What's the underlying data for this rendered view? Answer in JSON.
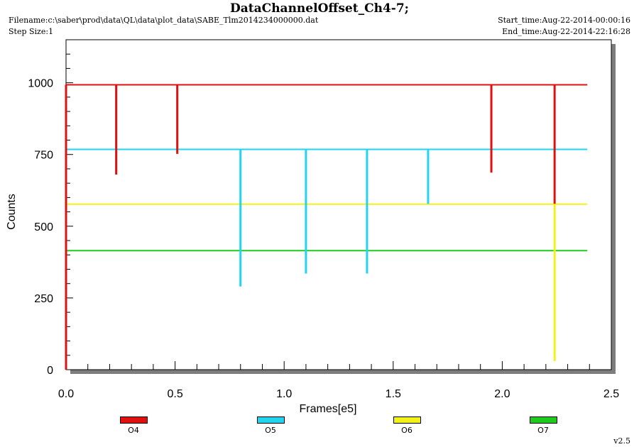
{
  "header": {
    "title": "DataChannelOffset_Ch4-7;",
    "filename": "Filename:c:\\saber\\prod\\data\\QL\\data\\plot_data\\SABE_Tlm2014234000000.dat",
    "step_size": "Step Size:1",
    "start_time": "Start_time:Aug-22-2014-00:00:16",
    "end_time": "End_time:Aug-22-2014-22:16:28"
  },
  "footer": {
    "version": "v2.5"
  },
  "chart_data": {
    "type": "line",
    "title": "DataChannelOffset_Ch4-7;",
    "xlabel": "Frames[e5]",
    "ylabel": "Counts",
    "xlim": [
      0.0,
      2.5
    ],
    "ylim": [
      0,
      1150
    ],
    "x_ticks": [
      0.0,
      0.5,
      1.0,
      1.5,
      2.0,
      2.5
    ],
    "x_tick_labels": [
      "0.0",
      "0.5",
      "1.0",
      "1.5",
      "2.0",
      "2.5"
    ],
    "y_ticks": [
      0,
      250,
      500,
      750,
      1000
    ],
    "y_tick_labels": [
      "0",
      "250",
      "500",
      "750",
      "1000"
    ],
    "grid": false,
    "legend_position": "bottom",
    "series": [
      {
        "name": "O4",
        "color": "#e01010",
        "base": 993,
        "x_range": [
          0.0,
          2.39
        ],
        "spikes": [
          {
            "x": 0.23,
            "y": 680
          },
          {
            "x": 0.51,
            "y": 752
          },
          {
            "x": 1.95,
            "y": 687
          },
          {
            "x": 2.24,
            "y": 578
          }
        ]
      },
      {
        "name": "O5",
        "color": "#22d4ee",
        "base": 768,
        "x_range": [
          0.0,
          2.39
        ],
        "spikes": [
          {
            "x": 0.8,
            "y": 290
          },
          {
            "x": 1.1,
            "y": 335
          },
          {
            "x": 1.38,
            "y": 335
          },
          {
            "x": 1.66,
            "y": 578
          }
        ]
      },
      {
        "name": "O6",
        "color": "#f2f21a",
        "base": 577,
        "x_range": [
          0.0,
          2.39
        ],
        "spikes": [
          {
            "x": 2.24,
            "y": 30
          }
        ]
      },
      {
        "name": "O7",
        "color": "#1ecb1e",
        "base": 415,
        "x_range": [
          0.0,
          2.39
        ],
        "spikes": []
      }
    ]
  }
}
